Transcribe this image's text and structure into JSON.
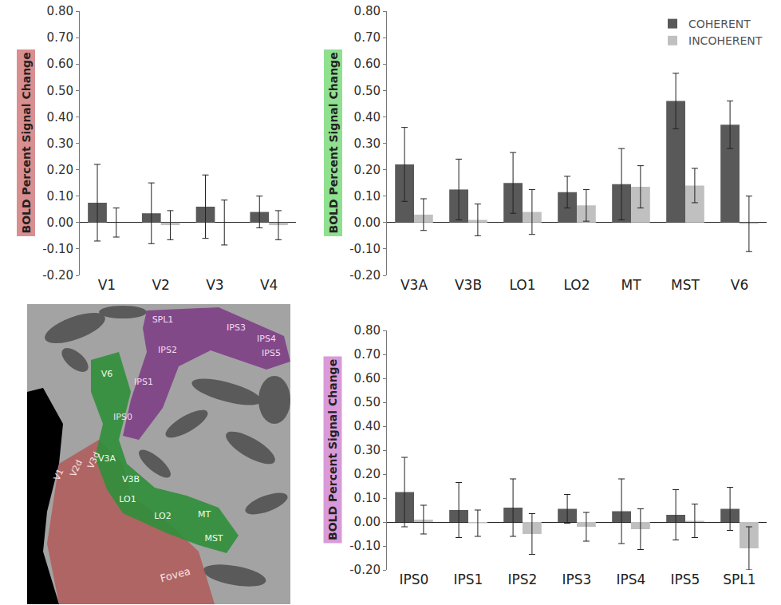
{
  "chart_data": [
    {
      "type": "bar",
      "y_label": "BOLD Percent Signal Change",
      "categories": [
        "V1",
        "V2",
        "V3",
        "V4"
      ],
      "series": [
        {
          "color": "#595959",
          "values": [
            0.075,
            0.035,
            0.06,
            0.04
          ],
          "errors": [
            0.145,
            0.115,
            0.12,
            0.06
          ]
        },
        {
          "color": "#c0c0c0",
          "values": [
            0.0,
            -0.01,
            0.0,
            -0.01
          ],
          "errors": [
            0.055,
            0.055,
            0.085,
            0.055
          ]
        }
      ],
      "ylim": [
        -0.2,
        0.8
      ],
      "yticks": [
        {
          "value": -0.2,
          "label": "-0.20"
        },
        {
          "value": -0.1,
          "label": "-0.10"
        },
        {
          "value": 0,
          "label": "0.00"
        },
        {
          "value": 0.1,
          "label": "0.10"
        },
        {
          "value": 0.2,
          "label": "0.20"
        },
        {
          "value": 0.3,
          "label": "0.30"
        },
        {
          "value": 0.4,
          "label": "0.40"
        },
        {
          "value": 0.5,
          "label": "0.50"
        },
        {
          "value": 0.6,
          "label": "0.60"
        },
        {
          "value": 0.7,
          "label": "0.70"
        },
        {
          "value": 0.8,
          "label": "0.80"
        }
      ],
      "grid": false
    },
    {
      "type": "bar",
      "y_label": "BOLD Percent Signal Change",
      "categories": [
        "V3A",
        "V3B",
        "LO1",
        "LO2",
        "MT",
        "MST",
        "V6"
      ],
      "series": [
        {
          "name": "COHERENT",
          "color": "#595959",
          "values": [
            0.22,
            0.125,
            0.15,
            0.115,
            0.145,
            0.46,
            0.37
          ],
          "errors": [
            0.14,
            0.115,
            0.115,
            0.06,
            0.135,
            0.105,
            0.09
          ]
        },
        {
          "name": "INCOHERENT",
          "color": "#c0c0c0",
          "values": [
            0.03,
            0.01,
            0.04,
            0.065,
            0.135,
            0.14,
            -0.005
          ],
          "errors": [
            0.06,
            0.06,
            0.085,
            0.06,
            0.08,
            0.065,
            0.105
          ]
        }
      ],
      "ylim": [
        -0.2,
        0.8
      ],
      "yticks": [
        {
          "value": -0.2,
          "label": "-0.20"
        },
        {
          "value": -0.1,
          "label": "-0.10"
        },
        {
          "value": 0,
          "label": "0.00"
        },
        {
          "value": 0.1,
          "label": "0.10"
        },
        {
          "value": 0.2,
          "label": "0.20"
        },
        {
          "value": 0.3,
          "label": "0.30"
        },
        {
          "value": 0.4,
          "label": "0.40"
        },
        {
          "value": 0.5,
          "label": "0.50"
        },
        {
          "value": 0.6,
          "label": "0.60"
        },
        {
          "value": 0.7,
          "label": "0.70"
        },
        {
          "value": 0.8,
          "label": "0.80"
        }
      ],
      "grid": false,
      "legend": "top right"
    },
    {
      "type": "bar",
      "y_label": "BOLD Percent Signal Change",
      "categories": [
        "IPS0",
        "IPS1",
        "IPS2",
        "IPS3",
        "IPS4",
        "IPS5",
        "SPL1"
      ],
      "series": [
        {
          "color": "#595959",
          "values": [
            0.125,
            0.05,
            0.06,
            0.055,
            0.045,
            0.03,
            0.055
          ],
          "errors": [
            0.145,
            0.115,
            0.12,
            0.06,
            0.135,
            0.105,
            0.09
          ]
        },
        {
          "color": "#c0c0c0",
          "values": [
            0.01,
            -0.005,
            -0.05,
            -0.02,
            -0.03,
            0.005,
            -0.11
          ],
          "errors": [
            0.06,
            0.055,
            0.085,
            0.06,
            0.085,
            0.07,
            0.09
          ]
        }
      ],
      "ylim": [
        -0.2,
        0.8
      ],
      "yticks": [
        {
          "value": -0.2,
          "label": "-0.20"
        },
        {
          "value": -0.1,
          "label": "-0.10"
        },
        {
          "value": 0,
          "label": "0.00"
        },
        {
          "value": 0.1,
          "label": "0.10"
        },
        {
          "value": 0.2,
          "label": "0.20"
        },
        {
          "value": 0.3,
          "label": "0.30"
        },
        {
          "value": 0.4,
          "label": "0.40"
        },
        {
          "value": 0.5,
          "label": "0.50"
        },
        {
          "value": 0.6,
          "label": "0.60"
        },
        {
          "value": 0.7,
          "label": "0.70"
        },
        {
          "value": 0.8,
          "label": "0.80"
        }
      ],
      "grid": false
    }
  ],
  "brain_map": {
    "labels": [
      "SPL1",
      "IPS3",
      "IPS4",
      "IPS5",
      "IPS2",
      "IPS1",
      "V6",
      "IPS0",
      "V3A",
      "V3B",
      "LO1",
      "LO2",
      "MT",
      "MST",
      "V1",
      "V2d",
      "V3d",
      "Fovea"
    ]
  }
}
